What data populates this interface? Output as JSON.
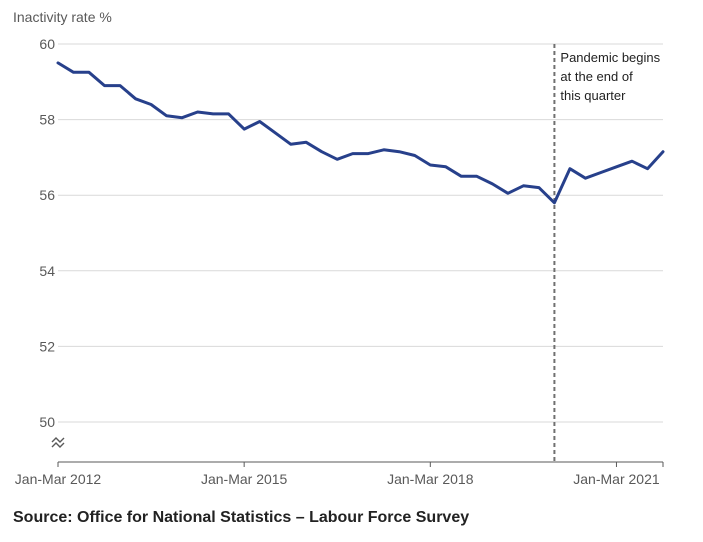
{
  "chart_data": {
    "type": "line",
    "ylabel": "Inactivity rate %",
    "ylim": [
      50,
      60
    ],
    "yticks": [
      50,
      52,
      54,
      56,
      58,
      60
    ],
    "xticks": [
      {
        "index": 0,
        "label": "Jan-Mar 2012"
      },
      {
        "index": 12,
        "label": "Jan-Mar 2015"
      },
      {
        "index": 24,
        "label": "Jan-Mar 2018"
      },
      {
        "index": 36,
        "label": "Jan-Mar 2021"
      }
    ],
    "grid": true,
    "axis_break": true,
    "series": [
      {
        "name": "Inactivity rate",
        "color": "#27408b",
        "values": [
          59.5,
          59.25,
          59.25,
          58.9,
          58.9,
          58.55,
          58.4,
          58.1,
          58.05,
          58.2,
          58.15,
          58.15,
          57.75,
          57.95,
          57.65,
          57.35,
          57.4,
          57.15,
          56.95,
          57.1,
          57.1,
          57.2,
          57.15,
          57.05,
          56.8,
          56.75,
          56.5,
          56.5,
          56.3,
          56.05,
          56.25,
          56.2,
          55.8,
          56.7,
          56.45,
          56.6,
          56.75,
          56.9,
          56.7,
          57.15
        ]
      }
    ],
    "annotation": {
      "index": 32,
      "lines": [
        "Pandemic begins",
        "at the end of",
        "this quarter"
      ]
    }
  },
  "source": "Source: Office for National Statistics – Labour Force Survey"
}
